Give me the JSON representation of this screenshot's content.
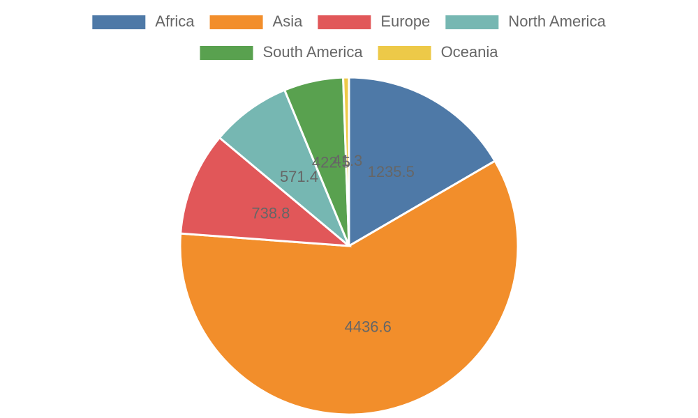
{
  "chart_data": {
    "type": "pie",
    "categories": [
      "Africa",
      "Asia",
      "Europe",
      "North America",
      "South America",
      "Oceania"
    ],
    "values": [
      1235.5,
      4436.6,
      738.8,
      571.4,
      422.5,
      41.3
    ],
    "colors": [
      "#4e79a7",
      "#f28e2b",
      "#e15759",
      "#76b7b2",
      "#59a14f",
      "#edc948"
    ],
    "legend": "top"
  }
}
